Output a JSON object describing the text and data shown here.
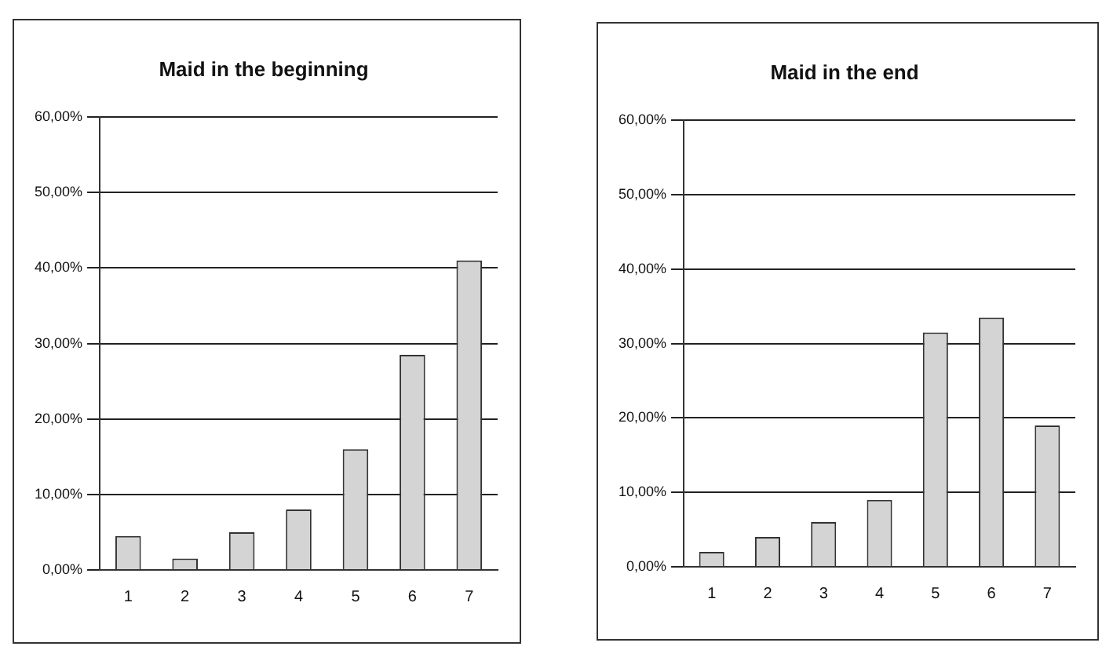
{
  "chart_data": [
    {
      "type": "bar",
      "title": "Maid in the beginning",
      "categories": [
        "1",
        "2",
        "3",
        "4",
        "5",
        "6",
        "7"
      ],
      "values": [
        4.5,
        1.5,
        5,
        8,
        16,
        28.5,
        41
      ],
      "color": "#d4d4d4",
      "ylim": [
        0,
        60
      ],
      "yticks": [
        {
          "value": 0,
          "label": "0,00%"
        },
        {
          "value": 10,
          "label": "10,00%"
        },
        {
          "value": 20,
          "label": "20,00%"
        },
        {
          "value": 30,
          "label": "30,00%"
        },
        {
          "value": 40,
          "label": "40,00%"
        },
        {
          "value": 50,
          "label": "50,00%"
        },
        {
          "value": 60,
          "label": "60,00%"
        }
      ],
      "grid": "y",
      "legend": false
    },
    {
      "type": "bar",
      "title": "Maid in the end",
      "categories": [
        "1",
        "2",
        "3",
        "4",
        "5",
        "6",
        "7"
      ],
      "values": [
        2,
        4,
        6,
        9,
        31.5,
        33.5,
        19
      ],
      "color": "#d4d4d4",
      "ylim": [
        0,
        60
      ],
      "yticks": [
        {
          "value": 0,
          "label": "0,00%"
        },
        {
          "value": 10,
          "label": "10,00%"
        },
        {
          "value": 20,
          "label": "20,00%"
        },
        {
          "value": 30,
          "label": "30,00%"
        },
        {
          "value": 40,
          "label": "40,00%"
        },
        {
          "value": 50,
          "label": "50,00%"
        },
        {
          "value": 60,
          "label": "60,00%"
        }
      ],
      "grid": "y",
      "legend": false
    }
  ]
}
